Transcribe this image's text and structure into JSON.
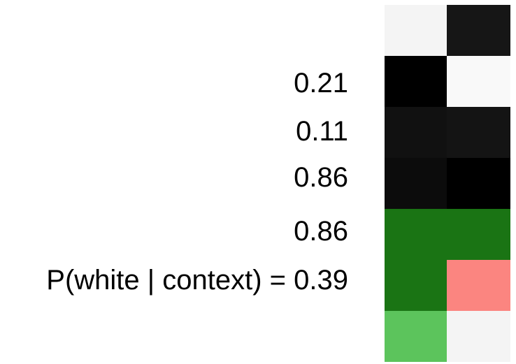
{
  "labels": [
    "0.21",
    "0.11",
    "0.86",
    "0.86",
    "P(white | context) = 0.39"
  ],
  "grid": {
    "columns": 2,
    "rows": [
      [
        "#f4f4f4",
        "#161616"
      ],
      [
        "#000000",
        "#f9f9f9"
      ],
      [
        "#111111",
        "#141414"
      ],
      [
        "#0c0c0c",
        "#000000"
      ],
      [
        "#1a7414",
        "#1a7414"
      ],
      [
        "#1a7414",
        "#fb8580"
      ],
      [
        "#5cc45c",
        "#f4f4f4"
      ]
    ]
  }
}
